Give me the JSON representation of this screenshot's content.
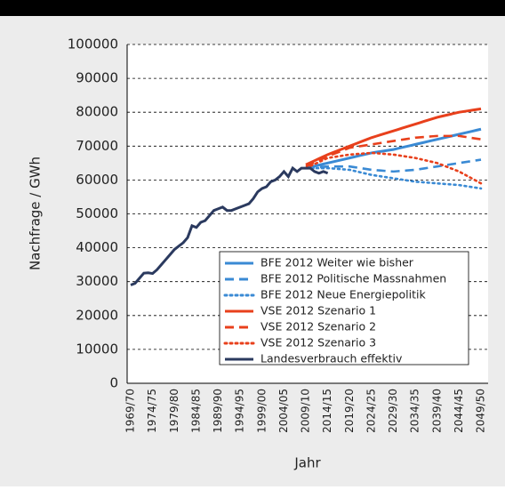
{
  "chart_data": {
    "type": "line",
    "y_label": "Nachfrage / GWh",
    "x_label": "Jahr",
    "categories": [
      "1969/70",
      null,
      null,
      null,
      null,
      "1974/75",
      null,
      null,
      null,
      null,
      "1979/80",
      null,
      null,
      null,
      null,
      "1984/85",
      null,
      null,
      null,
      null,
      "1989/90",
      null,
      null,
      null,
      null,
      "1994/95",
      null,
      null,
      null,
      null,
      "1999/00",
      null,
      null,
      null,
      null,
      "2004/05",
      null,
      null,
      null,
      null,
      "2009/10",
      null,
      null,
      null,
      null,
      "2014/15",
      null,
      null,
      null,
      null,
      "2019/20",
      null,
      null,
      null,
      null,
      "2024/25",
      null,
      null,
      null,
      null,
      "2029/30",
      null,
      null,
      null,
      null,
      "2034/35",
      null,
      null,
      null,
      null,
      "2039/40",
      null,
      null,
      null,
      null,
      "2044/45",
      null,
      null,
      null,
      null,
      "2049/50"
    ],
    "ylim": [
      0,
      100000
    ],
    "yticks": [
      0,
      10000,
      20000,
      30000,
      40000,
      50000,
      60000,
      70000,
      80000,
      90000,
      100000
    ],
    "grid": true,
    "series": [
      {
        "name": "BFE 2012 Weiter wie bisher",
        "color": "#3a8ad4",
        "style": "solid",
        "values": [
          null,
          null,
          null,
          null,
          null,
          null,
          null,
          null,
          null,
          null,
          null,
          null,
          null,
          null,
          null,
          null,
          null,
          null,
          null,
          null,
          null,
          null,
          null,
          null,
          null,
          null,
          null,
          null,
          null,
          null,
          null,
          null,
          null,
          null,
          null,
          null,
          null,
          null,
          null,
          null,
          63500,
          63800,
          64100,
          64400,
          64700,
          65000,
          65300,
          65600,
          65900,
          66200,
          66500,
          66800,
          67100,
          67400,
          67700,
          68000,
          68200,
          68400,
          68600,
          68800,
          69000,
          69300,
          69600,
          69900,
          70200,
          70500,
          70800,
          71100,
          71400,
          71700,
          72000,
          72300,
          72600,
          72900,
          73200,
          73500,
          73800,
          74100,
          74400,
          74700,
          75000
        ]
      },
      {
        "name": "BFE 2012 Politische Massnahmen",
        "color": "#3a8ad4",
        "style": "dash",
        "values": [
          null,
          null,
          null,
          null,
          null,
          null,
          null,
          null,
          null,
          null,
          null,
          null,
          null,
          null,
          null,
          null,
          null,
          null,
          null,
          null,
          null,
          null,
          null,
          null,
          null,
          null,
          null,
          null,
          null,
          null,
          null,
          null,
          null,
          null,
          null,
          null,
          null,
          null,
          null,
          null,
          63500,
          63600,
          63700,
          63800,
          63900,
          64000,
          64000,
          64000,
          64000,
          64000,
          64000,
          63800,
          63600,
          63400,
          63200,
          63000,
          62900,
          62800,
          62700,
          62600,
          62500,
          62600,
          62700,
          62800,
          62900,
          63000,
          63200,
          63400,
          63600,
          63800,
          64000,
          64200,
          64400,
          64600,
          64800,
          65000,
          65200,
          65400,
          65600,
          65800,
          66000
        ]
      },
      {
        "name": "BFE 2012 Neue Energiepolitik",
        "color": "#3a8ad4",
        "style": "dot",
        "values": [
          null,
          null,
          null,
          null,
          null,
          null,
          null,
          null,
          null,
          null,
          null,
          null,
          null,
          null,
          null,
          null,
          null,
          null,
          null,
          null,
          null,
          null,
          null,
          null,
          null,
          null,
          null,
          null,
          null,
          null,
          null,
          null,
          null,
          null,
          null,
          null,
          null,
          null,
          null,
          null,
          63500,
          63500,
          63500,
          63500,
          63500,
          63500,
          63400,
          63300,
          63200,
          63100,
          63000,
          62700,
          62400,
          62100,
          61800,
          61500,
          61300,
          61100,
          60900,
          60700,
          60500,
          60300,
          60100,
          59900,
          59700,
          59500,
          59400,
          59300,
          59200,
          59100,
          59000,
          58900,
          58800,
          58700,
          58600,
          58500,
          58300,
          58100,
          57900,
          57700,
          57500
        ]
      },
      {
        "name": "VSE 2012 Szenario 1",
        "color": "#e8401c",
        "style": "solid",
        "values": [
          null,
          null,
          null,
          null,
          null,
          null,
          null,
          null,
          null,
          null,
          null,
          null,
          null,
          null,
          null,
          null,
          null,
          null,
          null,
          null,
          null,
          null,
          null,
          null,
          null,
          null,
          null,
          null,
          null,
          null,
          null,
          null,
          null,
          null,
          null,
          null,
          null,
          null,
          null,
          null,
          64500,
          65100,
          65700,
          66300,
          66900,
          67500,
          68000,
          68500,
          69000,
          69500,
          70000,
          70500,
          71000,
          71500,
          72000,
          72500,
          72900,
          73300,
          73700,
          74100,
          74500,
          74900,
          75300,
          75700,
          76100,
          76500,
          76900,
          77300,
          77700,
          78100,
          78500,
          78800,
          79100,
          79400,
          79700,
          80000,
          80200,
          80400,
          80600,
          80800,
          81000
        ]
      },
      {
        "name": "VSE 2012 Szenario 2",
        "color": "#e8401c",
        "style": "dash",
        "values": [
          null,
          null,
          null,
          null,
          null,
          null,
          null,
          null,
          null,
          null,
          null,
          null,
          null,
          null,
          null,
          null,
          null,
          null,
          null,
          null,
          null,
          null,
          null,
          null,
          null,
          null,
          null,
          null,
          null,
          null,
          null,
          null,
          null,
          null,
          null,
          null,
          null,
          null,
          null,
          null,
          64000,
          64600,
          65200,
          65800,
          66400,
          67000,
          67500,
          68000,
          68500,
          69000,
          69500,
          69700,
          69900,
          70100,
          70300,
          70500,
          70700,
          70900,
          71100,
          71300,
          71500,
          71700,
          71900,
          72100,
          72300,
          72500,
          72600,
          72700,
          72800,
          72900,
          73000,
          73000,
          73000,
          73000,
          73000,
          73000,
          72800,
          72600,
          72400,
          72200,
          72000
        ]
      },
      {
        "name": "VSE 2012 Szenario 3",
        "color": "#e8401c",
        "style": "dot",
        "values": [
          null,
          null,
          null,
          null,
          null,
          null,
          null,
          null,
          null,
          null,
          null,
          null,
          null,
          null,
          null,
          null,
          null,
          null,
          null,
          null,
          null,
          null,
          null,
          null,
          null,
          null,
          null,
          null,
          null,
          null,
          null,
          null,
          null,
          null,
          null,
          null,
          null,
          null,
          null,
          null,
          63500,
          64100,
          64700,
          65300,
          65900,
          66500,
          66700,
          66900,
          67100,
          67300,
          67500,
          67600,
          67700,
          67800,
          67900,
          68000,
          67900,
          67800,
          67700,
          67600,
          67500,
          67300,
          67100,
          66900,
          66700,
          66500,
          66200,
          65900,
          65600,
          65300,
          65000,
          64500,
          64000,
          63500,
          63000,
          62500,
          61800,
          61100,
          60400,
          59700,
          59000
        ]
      },
      {
        "name": "Landesverbrauch effektiv",
        "color": "#2b3a5f",
        "style": "solid",
        "values": [
          29000,
          29500,
          31000,
          32500,
          32600,
          32400,
          33500,
          35000,
          36500,
          38000,
          39500,
          40500,
          41500,
          43000,
          46500,
          46000,
          47500,
          48000,
          49500,
          51000,
          51500,
          52000,
          51000,
          51000,
          51500,
          52000,
          52500,
          53000,
          54500,
          56500,
          57500,
          58000,
          59500,
          60000,
          61000,
          62500,
          61000,
          63500,
          62500,
          63500,
          63500,
          63500,
          62500,
          62000,
          62500,
          62000,
          null,
          null,
          null,
          null,
          null,
          null,
          null,
          null,
          null,
          null,
          null,
          null,
          null,
          null,
          null,
          null,
          null,
          null,
          null,
          null,
          null,
          null,
          null,
          null,
          null,
          null,
          null,
          null,
          null,
          null,
          null,
          null,
          null,
          null,
          null
        ]
      }
    ]
  }
}
